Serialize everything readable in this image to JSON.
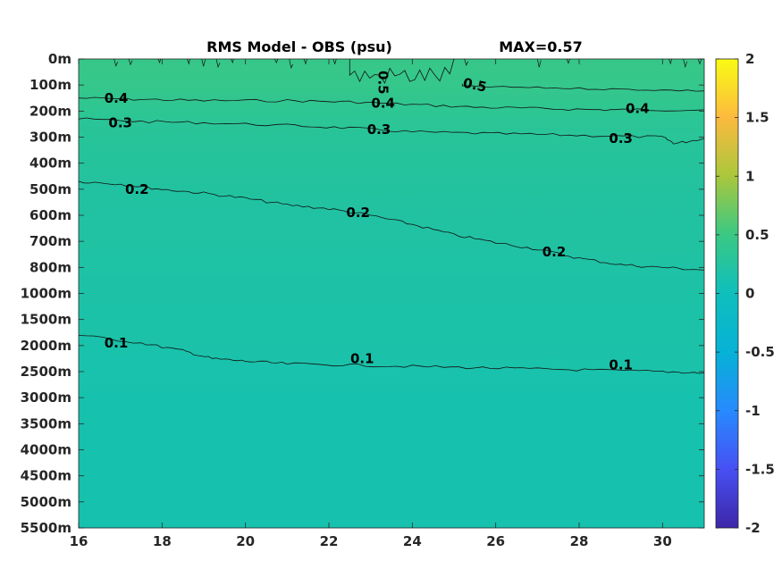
{
  "chart_data": {
    "type": "heatmap",
    "title": "RMS Model - OBS (psu)",
    "max_label": "MAX=0.57",
    "xlabel": "",
    "ylabel": "",
    "x_ticks": [
      "16",
      "18",
      "20",
      "22",
      "24",
      "26",
      "28",
      "30"
    ],
    "x_tick_values": [
      16,
      18,
      20,
      22,
      24,
      26,
      28,
      30
    ],
    "xlim": [
      16,
      31
    ],
    "y_tick_labels": [
      "0m",
      "100m",
      "200m",
      "300m",
      "400m",
      "500m",
      "600m",
      "700m",
      "800m",
      "1000m",
      "1500m",
      "2000m",
      "2500m",
      "3000m",
      "3500m",
      "4000m",
      "4500m",
      "5000m",
      "5500m"
    ],
    "colorbar": {
      "range": [
        -2,
        2
      ],
      "ticks": [
        "2",
        "1.5",
        "1",
        "0.5",
        "0",
        "-0.5",
        "-1",
        "-1.5",
        "-2"
      ],
      "tick_values": [
        2,
        1.5,
        1,
        0.5,
        0,
        -0.5,
        -1,
        -1.5,
        -2
      ],
      "colormap": "parula"
    },
    "contours": [
      {
        "level": 0.5,
        "labels": [
          {
            "text": "0.5",
            "x": 23.3,
            "depth_index": 0.9,
            "rotate": 90
          },
          {
            "text": "0.5",
            "x": 25.5,
            "depth_index": 1.0,
            "rotate": 12
          }
        ]
      },
      {
        "level": 0.4,
        "labels": [
          {
            "text": "0.4",
            "x": 16.9,
            "depth_index": 1.5
          },
          {
            "text": "0.4",
            "x": 23.3,
            "depth_index": 1.7
          },
          {
            "text": "0.4",
            "x": 29.4,
            "depth_index": 1.9
          }
        ],
        "path": [
          [
            16,
            1.5
          ],
          [
            17.5,
            1.55
          ],
          [
            19,
            1.6
          ],
          [
            21,
            1.6
          ],
          [
            22.5,
            1.65
          ],
          [
            24,
            1.75
          ],
          [
            25.5,
            1.85
          ],
          [
            27,
            1.9
          ],
          [
            28.5,
            1.95
          ],
          [
            29.5,
            1.95
          ],
          [
            31,
            1.95
          ]
        ]
      },
      {
        "level": 0.3,
        "labels": [
          {
            "text": "0.3",
            "x": 17.0,
            "depth_index": 2.45
          },
          {
            "text": "0.3",
            "x": 23.2,
            "depth_index": 2.7
          },
          {
            "text": "0.3",
            "x": 29.0,
            "depth_index": 3.05
          }
        ],
        "path": [
          [
            16,
            2.3
          ],
          [
            17.5,
            2.4
          ],
          [
            19,
            2.45
          ],
          [
            21,
            2.55
          ],
          [
            22.5,
            2.65
          ],
          [
            24,
            2.8
          ],
          [
            25.5,
            2.85
          ],
          [
            27,
            2.9
          ],
          [
            28.5,
            2.95
          ],
          [
            30,
            3.0
          ],
          [
            30.3,
            3.25
          ],
          [
            31,
            3.05
          ]
        ]
      },
      {
        "level": 0.2,
        "labels": [
          {
            "text": "0.2",
            "x": 17.4,
            "depth_index": 5.0
          },
          {
            "text": "0.2",
            "x": 22.7,
            "depth_index": 5.9
          },
          {
            "text": "0.2",
            "x": 27.4,
            "depth_index": 7.4
          }
        ],
        "path": [
          [
            16,
            4.7
          ],
          [
            17,
            4.8
          ],
          [
            18,
            5.0
          ],
          [
            19,
            5.15
          ],
          [
            20,
            5.35
          ],
          [
            21,
            5.6
          ],
          [
            22,
            5.75
          ],
          [
            23,
            6.0
          ],
          [
            24,
            6.35
          ],
          [
            25,
            6.75
          ],
          [
            26,
            7.05
          ],
          [
            27,
            7.3
          ],
          [
            28,
            7.65
          ],
          [
            29,
            7.9
          ],
          [
            30,
            8.0
          ],
          [
            31,
            8.1
          ]
        ]
      },
      {
        "level": 0.1,
        "labels": [
          {
            "text": "0.1",
            "x": 16.9,
            "depth_index": 10.9
          },
          {
            "text": "0.1",
            "x": 22.8,
            "depth_index": 11.5
          },
          {
            "text": "0.1",
            "x": 29.0,
            "depth_index": 11.75
          }
        ],
        "path": [
          [
            16,
            10.6
          ],
          [
            17.5,
            10.9
          ],
          [
            18.5,
            11.2
          ],
          [
            19.2,
            11.5
          ],
          [
            20,
            11.6
          ],
          [
            21,
            11.7
          ],
          [
            22.5,
            11.75
          ],
          [
            24,
            11.8
          ],
          [
            25.5,
            11.85
          ],
          [
            27,
            11.9
          ],
          [
            28.5,
            11.95
          ],
          [
            30,
            12.0
          ],
          [
            31,
            12.05
          ]
        ]
      }
    ],
    "field": [
      {
        "depth_index": 0.0,
        "value": 0.46
      },
      {
        "depth_index": 1.0,
        "value": 0.44
      },
      {
        "depth_index": 1.6,
        "value": 0.4
      },
      {
        "depth_index": 2.5,
        "value": 0.33
      },
      {
        "depth_index": 4.0,
        "value": 0.27
      },
      {
        "depth_index": 5.5,
        "value": 0.22
      },
      {
        "depth_index": 8.0,
        "value": 0.17
      },
      {
        "depth_index": 10.0,
        "value": 0.13
      },
      {
        "depth_index": 12.0,
        "value": 0.09
      },
      {
        "depth_index": 13.0,
        "value": 0.06
      },
      {
        "depth_index": 18.0,
        "value": 0.04
      }
    ]
  }
}
